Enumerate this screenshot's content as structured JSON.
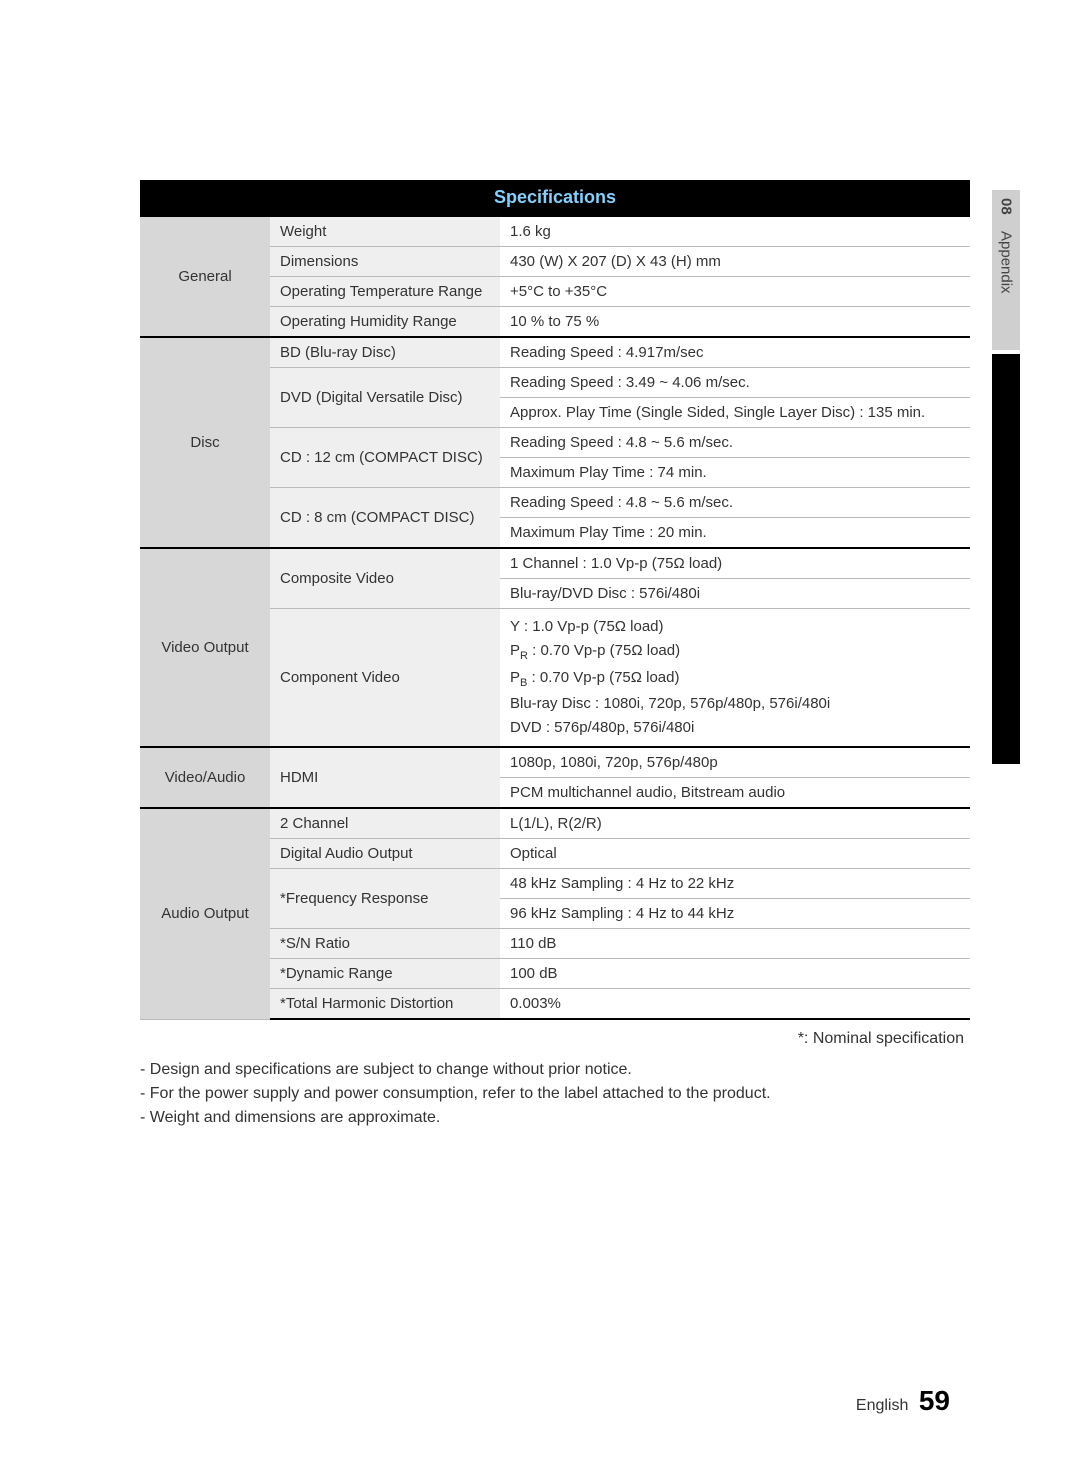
{
  "title": "Specifications",
  "sideTab": {
    "chapter": "08",
    "label": "Appendix"
  },
  "sections": [
    {
      "category": "General",
      "rows": [
        {
          "sub": "Weight",
          "vals": [
            "1.6 kg"
          ]
        },
        {
          "sub": "Dimensions",
          "vals": [
            "430 (W) X 207 (D) X 43 (H) mm"
          ]
        },
        {
          "sub": "Operating Temperature Range",
          "vals": [
            "+5°C to +35°C"
          ]
        },
        {
          "sub": "Operating Humidity Range",
          "vals": [
            "10 % to 75 %"
          ]
        }
      ]
    },
    {
      "category": "Disc",
      "rows": [
        {
          "sub": "BD (Blu-ray Disc)",
          "vals": [
            "Reading Speed : 4.917m/sec"
          ]
        },
        {
          "sub": "DVD (Digital Versatile Disc)",
          "vals": [
            "Reading Speed : 3.49 ~ 4.06 m/sec.",
            "Approx. Play Time (Single Sided, Single Layer Disc) : 135 min."
          ]
        },
        {
          "sub": "CD : 12 cm (COMPACT DISC)",
          "vals": [
            "Reading Speed : 4.8 ~ 5.6 m/sec.",
            "Maximum Play Time : 74 min."
          ]
        },
        {
          "sub": "CD : 8 cm (COMPACT DISC)",
          "vals": [
            "Reading Speed : 4.8 ~ 5.6 m/sec.",
            "Maximum Play Time : 20 min."
          ]
        }
      ]
    },
    {
      "category": "Video Output",
      "rows": [
        {
          "sub": "Composite Video",
          "vals": [
            "1 Channel : 1.0 Vp-p (75Ω load)",
            "Blu-ray/DVD Disc : 576i/480i"
          ]
        },
        {
          "sub": "Component Video",
          "component": {
            "line1": "Y  : 1.0 Vp-p (75Ω load)",
            "pr_label": "P",
            "pr_sub": "R",
            "pr_rest": " : 0.70 Vp-p (75Ω load)",
            "pb_label": "P",
            "pb_sub": "B",
            "pb_rest": " : 0.70 Vp-p (75Ω load)",
            "line4": "Blu-ray Disc : 1080i, 720p, 576p/480p, 576i/480i",
            "line5": "DVD : 576p/480p, 576i/480i"
          }
        }
      ]
    },
    {
      "category": "Video/Audio",
      "rows": [
        {
          "sub": "HDMI",
          "vals": [
            "1080p, 1080i, 720p, 576p/480p",
            "PCM multichannel audio, Bitstream audio"
          ]
        }
      ]
    },
    {
      "category": "Audio Output",
      "rows": [
        {
          "sub": "2 Channel",
          "vals": [
            "L(1/L), R(2/R)"
          ]
        },
        {
          "sub": "Digital Audio Output",
          "vals": [
            "Optical"
          ]
        },
        {
          "sub": "*Frequency Response",
          "vals": [
            "48 kHz Sampling : 4 Hz to 22 kHz",
            "96 kHz Sampling : 4 Hz to 44 kHz"
          ]
        },
        {
          "sub": "*S/N Ratio",
          "vals": [
            "110 dB"
          ]
        },
        {
          "sub": "*Dynamic Range",
          "vals": [
            "100 dB"
          ]
        },
        {
          "sub": "*Total Harmonic Distortion",
          "vals": [
            "0.003%"
          ]
        }
      ]
    }
  ],
  "nominal": "*: Nominal specification",
  "notes": [
    "Design and specifications are subject to change without prior notice.",
    "For the power supply and power consumption, refer to the label attached to the product.",
    "Weight and dimensions are approximate."
  ],
  "footer": {
    "lang": "English",
    "page": "59"
  }
}
